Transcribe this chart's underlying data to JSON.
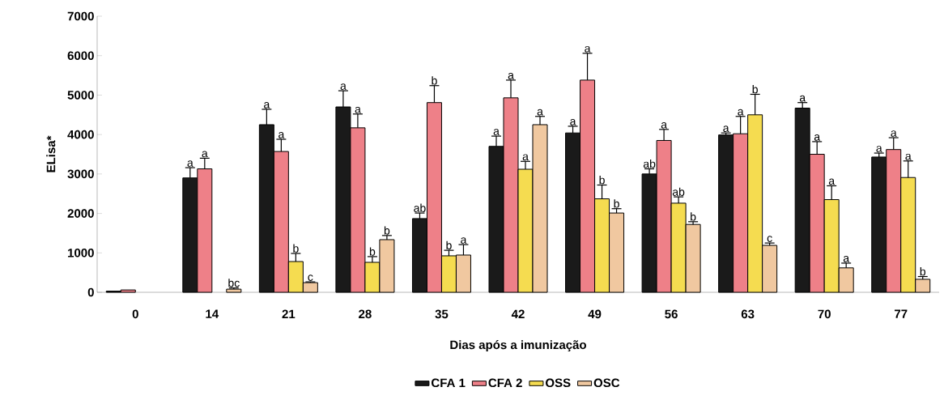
{
  "chart_data": {
    "type": "bar",
    "xlabel": "Dias após a imunização",
    "ylabel": "ELisa*",
    "categories": [
      "0",
      "14",
      "21",
      "28",
      "35",
      "42",
      "49",
      "56",
      "63",
      "70",
      "77"
    ],
    "ylim": [
      0,
      7000
    ],
    "yticks": [
      0,
      1000,
      2000,
      3000,
      4000,
      5000,
      6000,
      7000
    ],
    "grid": false,
    "legend": "bottom",
    "series": [
      {
        "name": "CFA 1",
        "color": "#1a1a1a",
        "values": [
          30,
          2900,
          4250,
          4700,
          1870,
          3700,
          4040,
          3000,
          3990,
          4670,
          3430
        ],
        "errors": [
          null,
          [
            2900,
            3160
          ],
          [
            4250,
            4640
          ],
          [
            4700,
            5110
          ],
          [
            1870,
            2010
          ],
          [
            3700,
            3960
          ],
          [
            4040,
            4210
          ],
          [
            3000,
            3130
          ],
          [
            3990,
            4040
          ],
          [
            4670,
            4810
          ],
          [
            3430,
            3530
          ]
        ],
        "value_labels": [
          null,
          "a",
          "a",
          "a",
          "ab",
          "a",
          "a",
          "ab",
          "a",
          "a",
          "a"
        ]
      },
      {
        "name": "CFA 2",
        "color": "#ee8088",
        "values": [
          60,
          3130,
          3570,
          4170,
          4810,
          4930,
          5380,
          3850,
          4020,
          3500,
          3620
        ],
        "errors": [
          null,
          [
            3130,
            3400
          ],
          [
            3570,
            3880
          ],
          [
            4170,
            4520
          ],
          [
            4810,
            5240
          ],
          [
            4930,
            5380
          ],
          [
            5380,
            6060
          ],
          [
            3850,
            4130
          ],
          [
            4020,
            4460
          ],
          [
            3500,
            3820
          ],
          [
            3620,
            3920
          ]
        ],
        "value_labels": [
          null,
          "a",
          "a",
          "a",
          "b",
          "a",
          "a",
          "a",
          "a",
          "a",
          "a"
        ]
      },
      {
        "name": "OSS",
        "color": "#f5dc50",
        "values": [
          null,
          null,
          780,
          760,
          925,
          3120,
          2370,
          2260,
          4500,
          2350,
          2910
        ],
        "errors": [
          null,
          null,
          [
            780,
            985
          ],
          [
            760,
            905
          ],
          [
            925,
            1065
          ],
          [
            3120,
            3320
          ],
          [
            2370,
            2720
          ],
          [
            2260,
            2420
          ],
          [
            4500,
            5020
          ],
          [
            2350,
            2700
          ],
          [
            2910,
            3330
          ]
        ],
        "value_labels": [
          null,
          null,
          "b",
          "b",
          "b",
          "a",
          "b",
          "ab",
          "b",
          "a",
          "a"
        ]
      },
      {
        "name": "OSC",
        "color": "#f0c8a0",
        "values": [
          null,
          80,
          245,
          1335,
          945,
          4250,
          2010,
          1720,
          1190,
          620,
          330
        ],
        "errors": [
          null,
          [
            80,
            110
          ],
          [
            245,
            265
          ],
          [
            1335,
            1440
          ],
          [
            945,
            1210
          ],
          [
            4250,
            4460
          ],
          [
            2010,
            2120
          ],
          [
            1720,
            1790
          ],
          [
            1190,
            1250
          ],
          [
            620,
            740
          ],
          [
            330,
            400
          ]
        ],
        "value_labels": [
          null,
          "bc",
          "c",
          "b",
          "a",
          "a",
          "b",
          "b",
          "c",
          "a",
          "b"
        ]
      }
    ]
  }
}
